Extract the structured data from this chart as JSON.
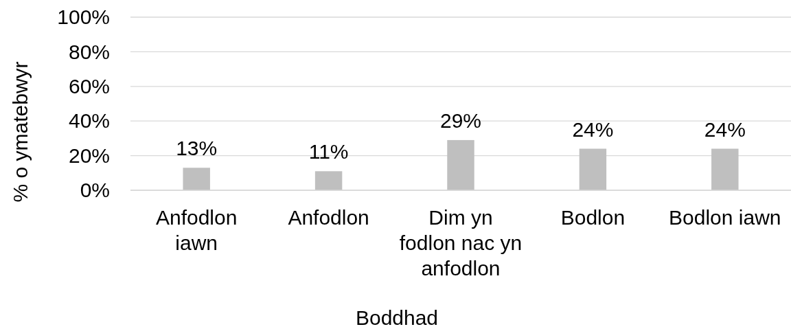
{
  "chart_data": {
    "type": "bar",
    "xlabel": "Boddhad",
    "ylabel": "% o ymatebwyr",
    "categories": [
      "Anfodlon iawn",
      "Anfodlon",
      "Dim yn fodlon nac yn anfodlon",
      "Bodlon",
      "Bodlon iawn"
    ],
    "values": [
      13,
      11,
      29,
      24,
      24
    ],
    "color": "#bfbfbf",
    "value_labels": [
      "13%",
      "11%",
      "29%",
      "24%",
      "24%"
    ],
    "ylim": [
      0,
      100
    ],
    "yticks": [
      {
        "value": 0,
        "label": "0%"
      },
      {
        "value": 20,
        "label": "20%"
      },
      {
        "value": 40,
        "label": "40%"
      },
      {
        "value": 60,
        "label": "60%"
      },
      {
        "value": 80,
        "label": "80%"
      },
      {
        "value": 100,
        "label": "100%"
      }
    ],
    "grid": "y"
  }
}
